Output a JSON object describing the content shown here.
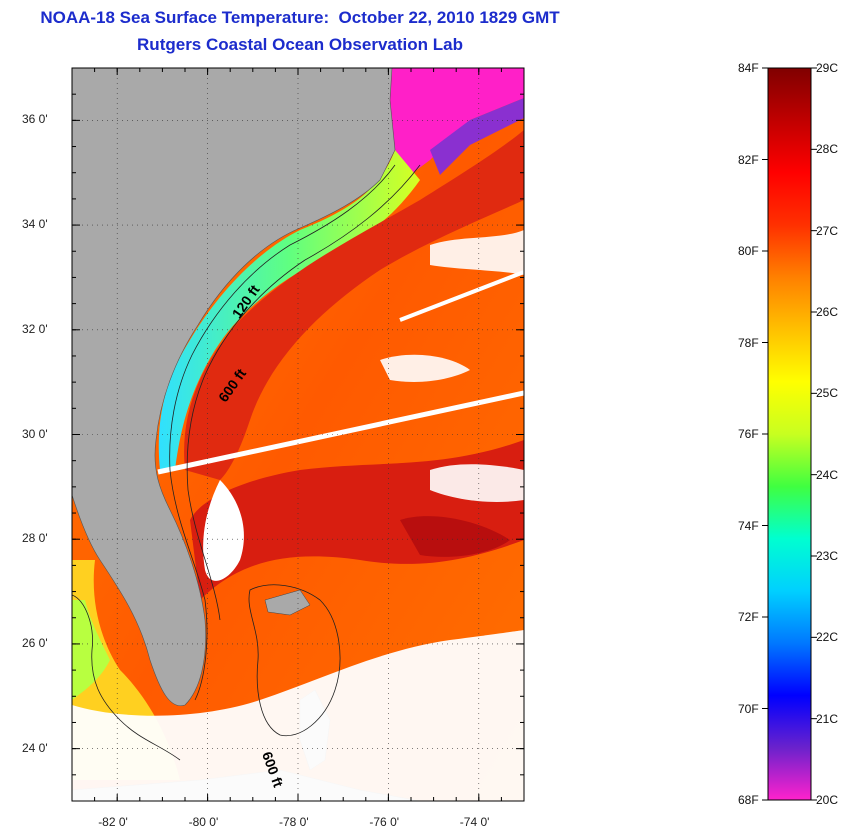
{
  "header": {
    "title": "NOAA-18 Sea Surface Temperature:  October 22, 2010 1829 GMT",
    "subtitle": "Rutgers Coastal Ocean Observation Lab"
  },
  "map": {
    "lon_range": [
      -83,
      -73
    ],
    "lat_range": [
      23,
      37
    ],
    "lon_ticks": [
      {
        "v": -82,
        "label": "-82 0'"
      },
      {
        "v": -80,
        "label": "-80 0'"
      },
      {
        "v": -78,
        "label": "-78 0'"
      },
      {
        "v": -76,
        "label": "-76 0'"
      },
      {
        "v": -74,
        "label": "-74 0'"
      }
    ],
    "lat_ticks": [
      {
        "v": 24,
        "label": "24 0'"
      },
      {
        "v": 26,
        "label": "26 0'"
      },
      {
        "v": 28,
        "label": "28 0'"
      },
      {
        "v": 30,
        "label": "30 0'"
      },
      {
        "v": 32,
        "label": "32 0'"
      },
      {
        "v": 34,
        "label": "34 0'"
      },
      {
        "v": 36,
        "label": "36 0'"
      }
    ],
    "contour_labels": [
      {
        "text": "120 ft",
        "lon": -79.3,
        "lat": 32.2
      },
      {
        "text": "600 ft",
        "lon": -79.6,
        "lat": 30.6
      },
      {
        "text": "600 ft",
        "lon": -78.8,
        "lat": 23.9
      }
    ],
    "colors": {
      "land": "#a9a9a9",
      "cloud": "#ffffff",
      "warm_core": "#cc0a0a",
      "gulf_stream": "#e02a10"
    }
  },
  "colorbar": {
    "stops": [
      "#ff22cc",
      "#6a22cc",
      "#0000ff",
      "#0078ff",
      "#00d0ff",
      "#00ffd0",
      "#40ff40",
      "#c8ff20",
      "#ffff00",
      "#ffc000",
      "#ff8000",
      "#ff3000",
      "#ff0000",
      "#c00000",
      "#800000"
    ],
    "fahrenheit": [
      "84F",
      "82F",
      "80F",
      "78F",
      "76F",
      "74F",
      "72F",
      "70F",
      "68F"
    ],
    "celsius": [
      "29C",
      "28C",
      "27C",
      "26C",
      "25C",
      "24C",
      "23C",
      "22C",
      "21C",
      "20C"
    ]
  }
}
